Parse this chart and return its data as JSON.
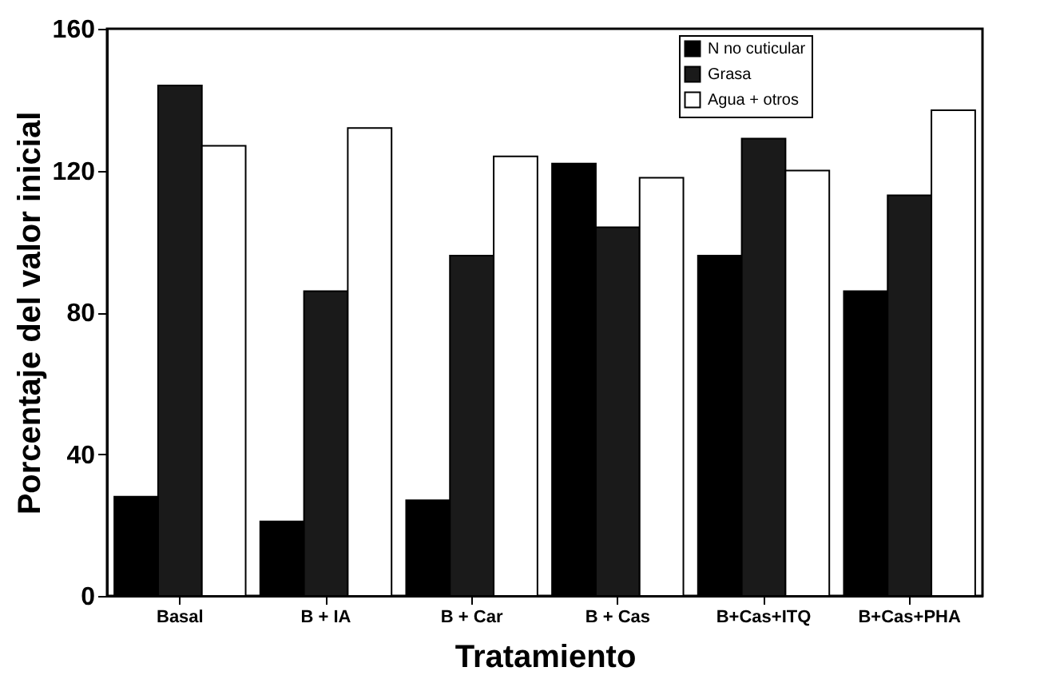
{
  "chart_data": {
    "type": "bar",
    "xlabel": "Tratamiento",
    "ylabel": "Porcentaje del valor inicial",
    "categories": [
      "Basal",
      "B + IA",
      "B + Car",
      "B + Cas",
      "B+Cas+ITQ",
      "B+Cas+PHA"
    ],
    "series": [
      {
        "name": "N no cuticular",
        "color": "#000000",
        "values": [
          28,
          21,
          27,
          122,
          96,
          86
        ]
      },
      {
        "name": "Grasa",
        "color": "#1a1a1a",
        "values": [
          144,
          86,
          96,
          104,
          129,
          113
        ]
      },
      {
        "name": "Agua + otros",
        "color": "#ffffff",
        "values": [
          127,
          132,
          124,
          118,
          120,
          137
        ]
      }
    ],
    "ylim": [
      0,
      160
    ],
    "yticks": [
      0,
      40,
      80,
      120,
      160
    ],
    "grid": false,
    "legend": "top right"
  }
}
